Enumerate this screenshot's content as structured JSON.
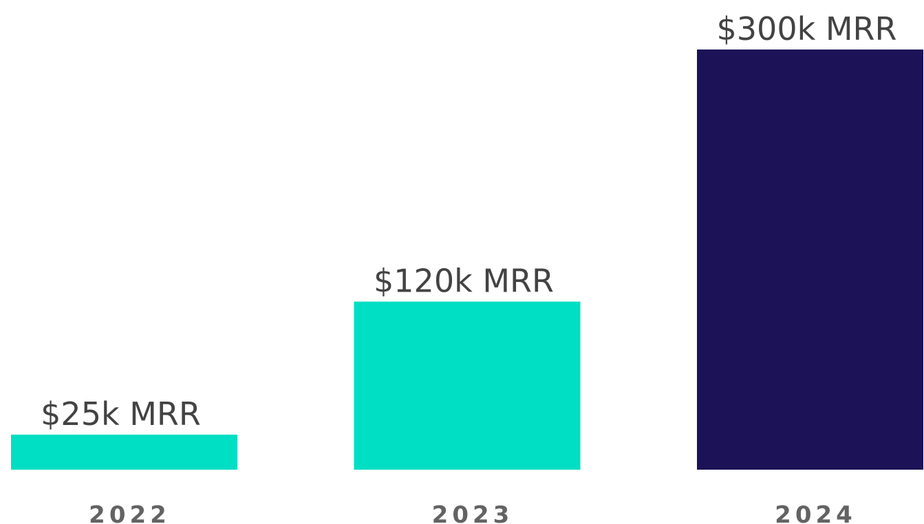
{
  "chart_data": {
    "type": "bar",
    "categories": [
      "2022",
      "2023",
      "2024"
    ],
    "values": [
      25,
      120,
      300
    ],
    "value_labels": [
      "$25k MRR",
      "$120k MRR",
      "$300k MRR"
    ],
    "colors": [
      "#00dec4",
      "#00dec4",
      "#1c1257"
    ]
  }
}
